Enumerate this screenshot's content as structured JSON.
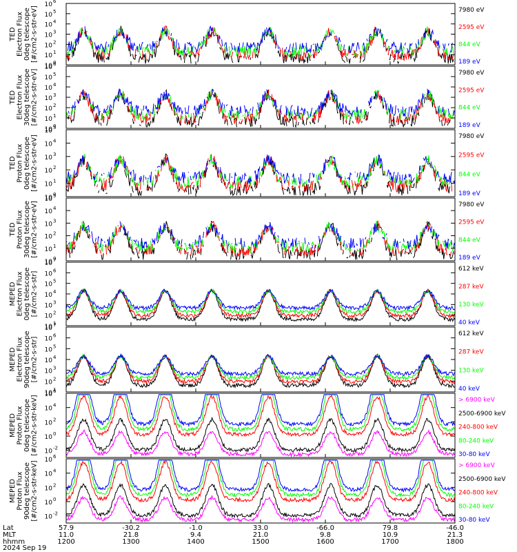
{
  "colors": {
    "black": "#000000",
    "red": "#ff0000",
    "green": "#00ff00",
    "blue": "#0000ff",
    "magenta": "#ff00ff"
  },
  "chart_data": [
    {
      "type": "line",
      "ylabel_lines": [
        "TED",
        "Electron Flux",
        "0deg telescope",
        "[#/cm2-s-str-eV]"
      ],
      "yscale": "log",
      "ylim_exp": [
        0,
        6
      ],
      "ytick_exps": [
        0,
        1,
        2,
        3,
        4,
        5,
        6
      ],
      "legend": [
        {
          "label": "7980 eV",
          "color": "#000000"
        },
        {
          "label": "2595 eV",
          "color": "#ff0000"
        },
        {
          "label": "844 eV",
          "color": "#00ff00"
        },
        {
          "label": "189 eV",
          "color": "#0000ff"
        }
      ]
    },
    {
      "type": "line",
      "ylabel_lines": [
        "TED",
        "Electron Flux",
        "30deg telescope",
        "[#/cm2-s-str-eV]"
      ],
      "yscale": "log",
      "ylim_exp": [
        0,
        6
      ],
      "ytick_exps": [
        0,
        1,
        2,
        3,
        4,
        5,
        6
      ],
      "legend": [
        {
          "label": "7980 eV",
          "color": "#000000"
        },
        {
          "label": "2595 eV",
          "color": "#ff0000"
        },
        {
          "label": "844 eV",
          "color": "#00ff00"
        },
        {
          "label": "189 eV",
          "color": "#0000ff"
        }
      ]
    },
    {
      "type": "line",
      "ylabel_lines": [
        "TED",
        "Proton Flux",
        "0deg telescope",
        "[#/cm2-s-str-eV]"
      ],
      "yscale": "log",
      "ylim_exp": [
        0,
        5
      ],
      "ytick_exps": [
        0,
        1,
        2,
        3,
        4,
        5
      ],
      "legend": [
        {
          "label": "7980 eV",
          "color": "#000000"
        },
        {
          "label": "2595 eV",
          "color": "#ff0000"
        },
        {
          "label": "844 eV",
          "color": "#00ff00"
        },
        {
          "label": "189 eV",
          "color": "#0000ff"
        }
      ]
    },
    {
      "type": "line",
      "ylabel_lines": [
        "TED",
        "Proton Flux",
        "30deg telescope",
        "[#/cm2-s-str-eV]"
      ],
      "yscale": "log",
      "ylim_exp": [
        0,
        5
      ],
      "ytick_exps": [
        0,
        1,
        2,
        3,
        4,
        5
      ],
      "legend": [
        {
          "label": "7980 eV",
          "color": "#000000"
        },
        {
          "label": "2595 eV",
          "color": "#ff0000"
        },
        {
          "label": "844 eV",
          "color": "#00ff00"
        },
        {
          "label": "189 eV",
          "color": "#0000ff"
        }
      ]
    },
    {
      "type": "line",
      "ylabel_lines": [
        "MEPED",
        "Electron Flux",
        "0deg telescope",
        "[#/cm2-s-str]"
      ],
      "yscale": "log",
      "ylim_exp": [
        1,
        7
      ],
      "ytick_exps": [
        1,
        2,
        3,
        4,
        5,
        6,
        7
      ],
      "legend": [
        {
          "label": "612 keV",
          "color": "#000000"
        },
        {
          "label": "287 keV",
          "color": "#ff0000"
        },
        {
          "label": "130 keV",
          "color": "#00ff00"
        },
        {
          "label": "40 keV",
          "color": "#0000ff"
        }
      ]
    },
    {
      "type": "line",
      "ylabel_lines": [
        "MEPED",
        "Electron Flux",
        "90deg telescope",
        "[#/cm2-s-str]"
      ],
      "yscale": "log",
      "ylim_exp": [
        1,
        7
      ],
      "ytick_exps": [
        1,
        2,
        3,
        4,
        5,
        6,
        7
      ],
      "legend": [
        {
          "label": "612 keV",
          "color": "#000000"
        },
        {
          "label": "287 keV",
          "color": "#ff0000"
        },
        {
          "label": "130 keV",
          "color": "#00ff00"
        },
        {
          "label": "40 keV",
          "color": "#0000ff"
        }
      ]
    },
    {
      "type": "line",
      "ylabel_lines": [
        "MEPED",
        "Proton Flux",
        "0deg telescope",
        "[#/cm2-s-str-keV]"
      ],
      "yscale": "log",
      "ylim_exp": [
        -3,
        6
      ],
      "ytick_exps": [
        -2,
        0,
        2,
        4,
        6
      ],
      "legend": [
        {
          "label": "> 6900 keV",
          "color": "#ff00ff"
        },
        {
          "label": "2500-6900 keV",
          "color": "#000000"
        },
        {
          "label": "240-800 keV",
          "color": "#ff0000"
        },
        {
          "label": "80-240 keV",
          "color": "#00ff00"
        },
        {
          "label": "30-80 keV",
          "color": "#0000ff"
        }
      ]
    },
    {
      "type": "line",
      "ylabel_lines": [
        "MEPED",
        "Proton Flux",
        "90deg telescope",
        "[#/cm2-s-str-keV]"
      ],
      "yscale": "log",
      "ylim_exp": [
        -3,
        6
      ],
      "ytick_exps": [
        -2,
        0,
        2,
        4,
        6
      ],
      "legend": [
        {
          "label": "> 6900 keV",
          "color": "#ff00ff"
        },
        {
          "label": "2500-6900 keV",
          "color": "#000000"
        },
        {
          "label": "240-800 keV",
          "color": "#ff0000"
        },
        {
          "label": "80-240 keV",
          "color": "#00ff00"
        },
        {
          "label": "30-80 keV",
          "color": "#0000ff"
        }
      ]
    }
  ],
  "x_axis": {
    "row_labels": [
      "Lat",
      "MLT",
      "hhmm"
    ],
    "date": "2024 Sep 19",
    "ticks": [
      {
        "time": "1200",
        "lat": "57.9",
        "mlt": "11.0"
      },
      {
        "time": "1300",
        "lat": "-30.2",
        "mlt": "21.8"
      },
      {
        "time": "1400",
        "lat": "-1.0",
        "mlt": "9.4"
      },
      {
        "time": "1500",
        "lat": "33.0",
        "mlt": "21.0"
      },
      {
        "time": "1600",
        "lat": "-66.0",
        "mlt": "9.8"
      },
      {
        "time": "1700",
        "lat": "79.8",
        "mlt": "10.9"
      },
      {
        "time": "1800",
        "lat": "-46.0",
        "mlt": "21.3"
      }
    ]
  }
}
